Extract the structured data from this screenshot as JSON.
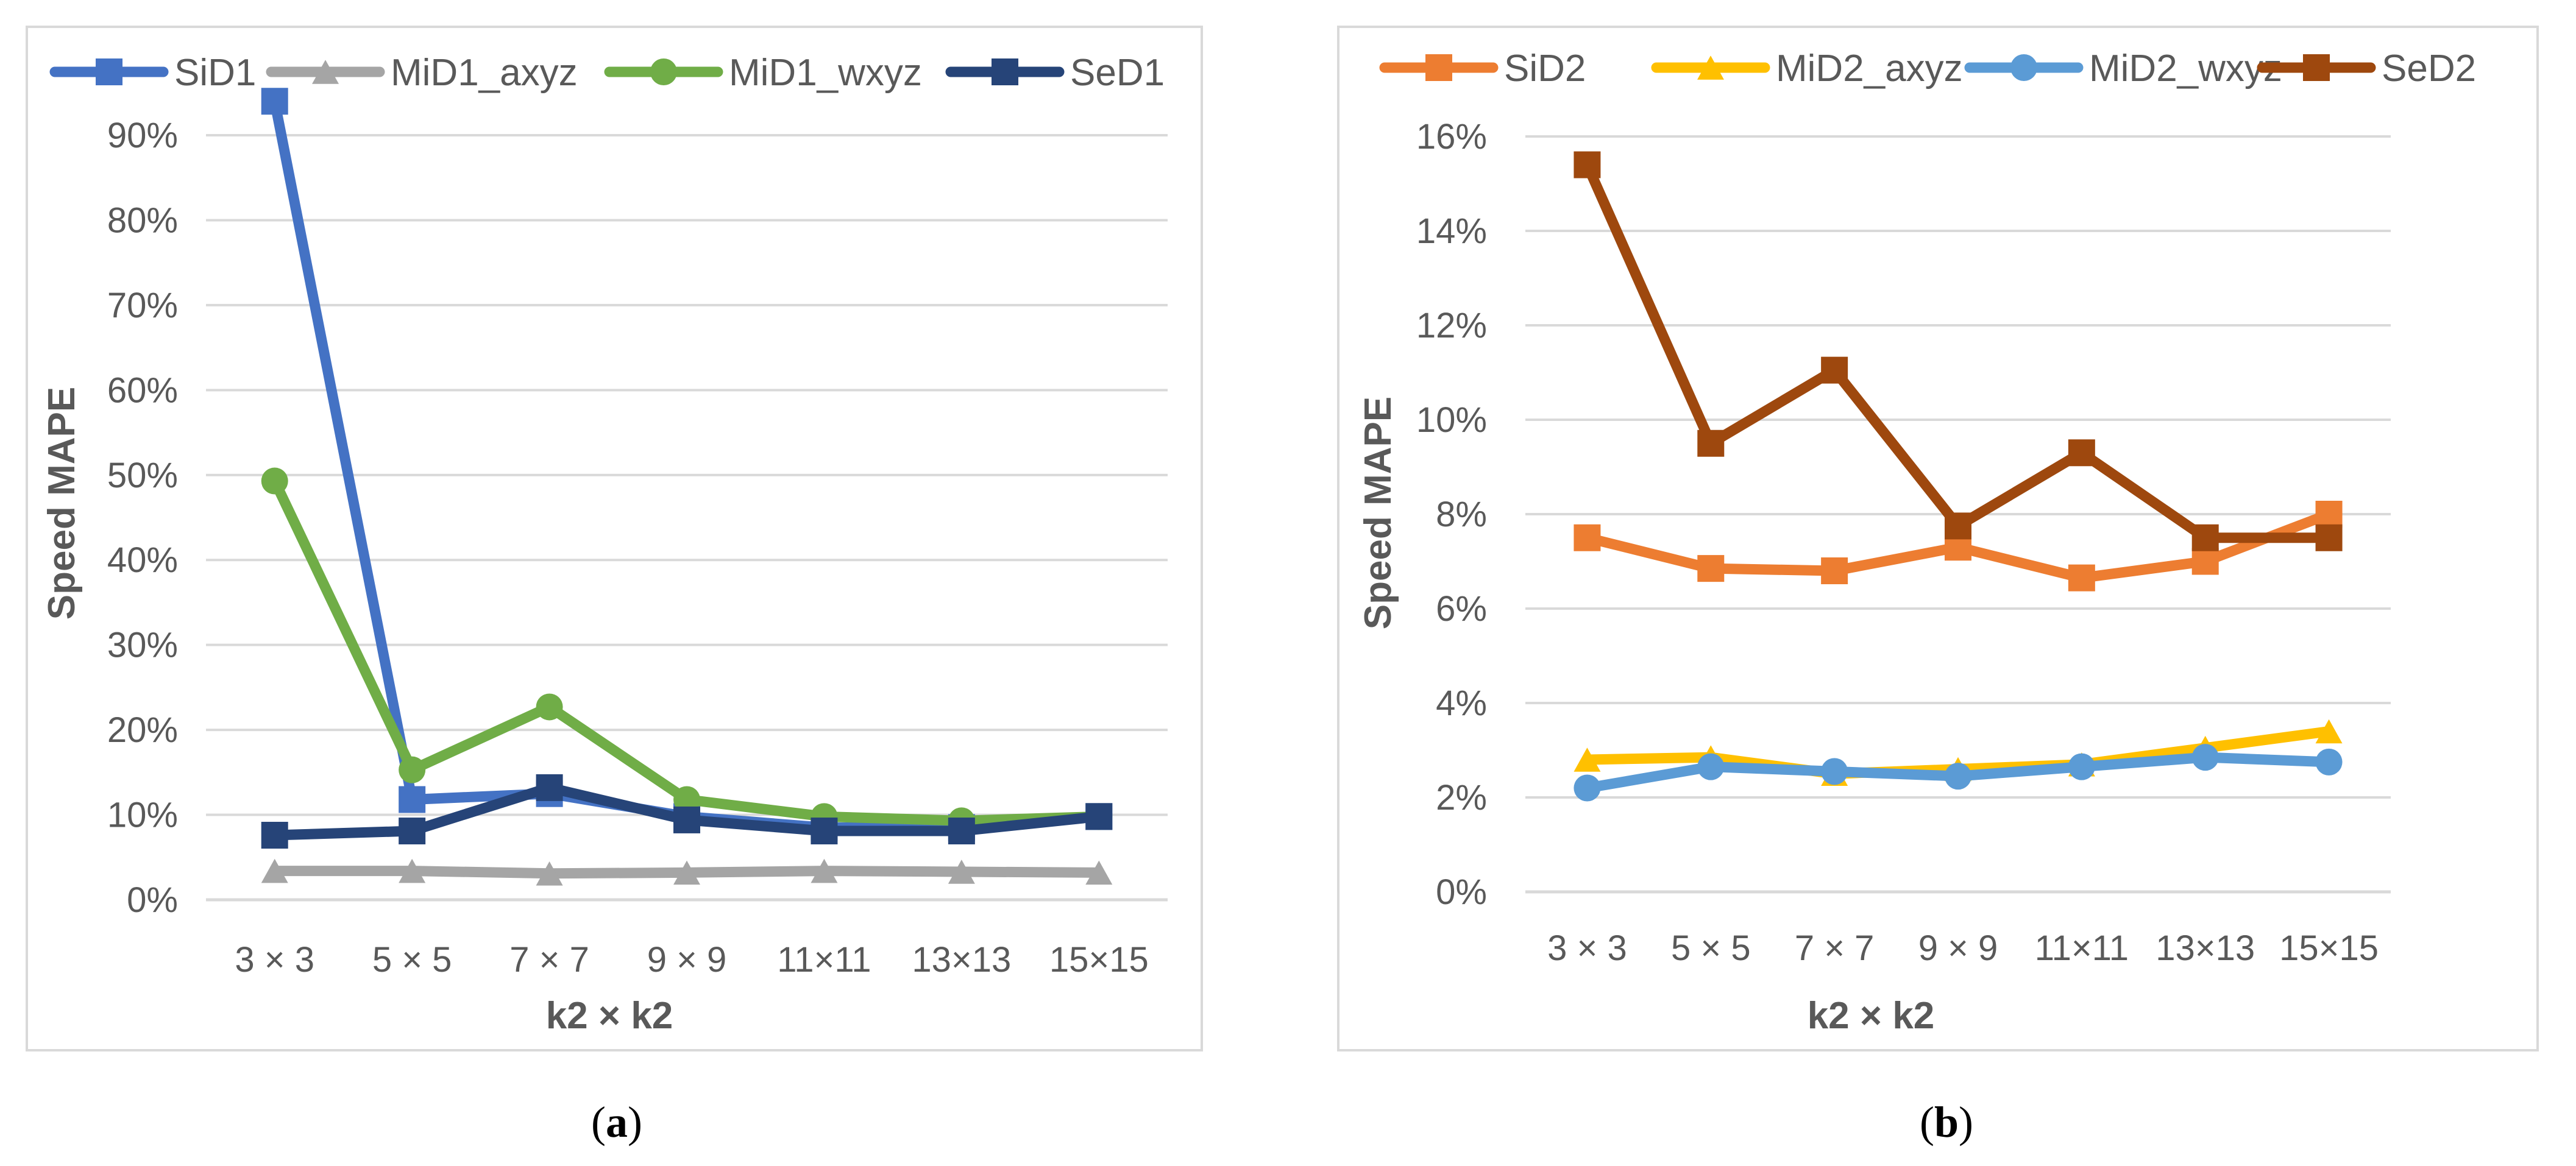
{
  "colors": {
    "gridline": "#d9d9d9",
    "frame": "#d9d9d9",
    "text": "#595959"
  },
  "chart_data": [
    {
      "type": "line",
      "panel_label": "a",
      "xlabel": "k2 × k2",
      "ylabel": "Speed MAPE",
      "categories": [
        "3 × 3",
        "5 × 5",
        "7 × 7",
        "9 × 9",
        "11×11",
        "13×13",
        "15×15"
      ],
      "ylim": [
        0,
        95
      ],
      "yticks": [
        0,
        10,
        20,
        30,
        40,
        50,
        60,
        70,
        80,
        90
      ],
      "ytick_labels": [
        "0%",
        "10%",
        "20%",
        "30%",
        "40%",
        "50%",
        "60%",
        "70%",
        "80%",
        "90%"
      ],
      "grid": true,
      "legend_position": "top",
      "series": [
        {
          "name": "SiD1",
          "color": "#4472c4",
          "marker": "square",
          "values": [
            94,
            11.8,
            12.5,
            9.8,
            8.5,
            8.5,
            9.8
          ]
        },
        {
          "name": "MiD1_axyz",
          "color": "#a5a5a5",
          "marker": "triangle",
          "values": [
            3.4,
            3.4,
            3.1,
            3.2,
            3.4,
            3.3,
            3.2
          ]
        },
        {
          "name": "MiD1_wxyz",
          "color": "#70ad47",
          "marker": "circle",
          "values": [
            49.3,
            15.3,
            22.7,
            11.8,
            9.8,
            9.3,
            9.8
          ]
        },
        {
          "name": "SeD1",
          "color": "#264478",
          "marker": "square",
          "values": [
            7.6,
            8.1,
            13.2,
            9.4,
            8.1,
            8.1,
            9.8
          ]
        }
      ]
    },
    {
      "type": "line",
      "panel_label": "b",
      "xlabel": "k2 × k2",
      "ylabel": "Speed MAPE",
      "categories": [
        "3 × 3",
        "5 × 5",
        "7 × 7",
        "9 × 9",
        "11×11",
        "13×13",
        "15×15"
      ],
      "ylim": [
        0,
        16
      ],
      "yticks": [
        0,
        2,
        4,
        6,
        8,
        10,
        12,
        14,
        16
      ],
      "ytick_labels": [
        "0%",
        "2%",
        "4%",
        "6%",
        "8%",
        "10%",
        "12%",
        "14%",
        "16%"
      ],
      "grid": true,
      "legend_position": "top",
      "series": [
        {
          "name": "SiD2",
          "color": "#ed7d31",
          "marker": "square",
          "values": [
            7.5,
            6.85,
            6.8,
            7.3,
            6.65,
            7.0,
            8.0
          ]
        },
        {
          "name": "MiD2_axyz",
          "color": "#ffc000",
          "marker": "triangle",
          "values": [
            2.8,
            2.85,
            2.5,
            2.6,
            2.7,
            3.05,
            3.4
          ]
        },
        {
          "name": "MiD2_wxyz",
          "color": "#5b9bd5",
          "marker": "circle",
          "values": [
            2.2,
            2.65,
            2.55,
            2.45,
            2.65,
            2.85,
            2.75
          ]
        },
        {
          "name": "SeD2",
          "color": "#9e480e",
          "marker": "square",
          "values": [
            15.4,
            9.5,
            11.05,
            7.75,
            9.3,
            7.5,
            7.5
          ]
        }
      ]
    }
  ]
}
